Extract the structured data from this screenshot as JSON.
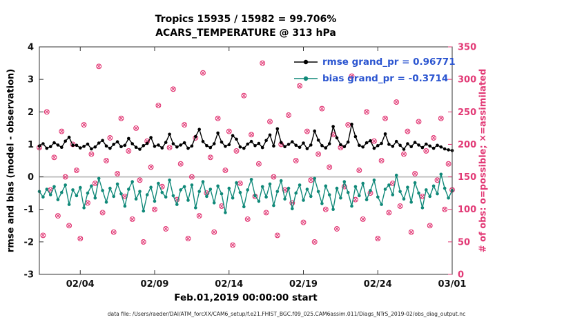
{
  "chart_data": {
    "type": "line",
    "title_line1": "Tropics 15935 / 15982 = 99.706%",
    "title_line2": "ACARS_TEMPERATURE @ 313 hPa",
    "xlabel": "Feb.01,2019 00:00:00 start",
    "ylabel_left": "rmse and bias (model - observation)",
    "ylabel_right": "# of obs: o=possible; ×=assimilated",
    "footer": "data file: /Users/raeder/DAI/ATM_forcXX/CAM6_setup/f.e21.FHIST_BGC.f09_025.CAM6assim.011/Diags_NTrS_2019-02/obs_diag_output.nc",
    "ylim_left": [
      -3,
      4
    ],
    "ylim_right": [
      0,
      350
    ],
    "xlim_days": [
      0.25,
      28
    ],
    "yticks_left": [
      -3,
      -2,
      -1,
      0,
      1,
      2,
      3,
      4
    ],
    "yticks_right": [
      0,
      50,
      100,
      150,
      200,
      250,
      300,
      350
    ],
    "xticks": [
      {
        "label": "02/04",
        "day": 3
      },
      {
        "label": "02/09",
        "day": 8
      },
      {
        "label": "02/14",
        "day": 13
      },
      {
        "label": "02/19",
        "day": 18
      },
      {
        "label": "02/24",
        "day": 23
      },
      {
        "label": "03/01",
        "day": 28
      }
    ],
    "zero_line": 0,
    "zero_line_color": "#bdbdbd",
    "axis_color": "#333333",
    "legend_text_color": "#2b55d0",
    "legend": [
      {
        "label": "rmse grand_pr = 0.96771",
        "color": "#000000"
      },
      {
        "label": "bias grand_pr = -0.3714",
        "color": "#108979"
      }
    ],
    "points": {
      "x_start_day": 0.25,
      "x_step_days": 0.25,
      "count": 112
    },
    "series": [
      {
        "name": "rmse",
        "color": "#000000",
        "values": [
          0.95,
          1.02,
          0.88,
          0.93,
          1.05,
          0.98,
          0.91,
          1.1,
          1.22,
          0.97,
          0.97,
          0.89,
          0.94,
          1.01,
          0.86,
          0.92,
          1.04,
          1.12,
          0.95,
          0.88,
          1.0,
          1.08,
          0.93,
          0.97,
          1.18,
          1.02,
          0.91,
          0.85,
          0.96,
          1.03,
          1.21,
          0.94,
          0.98,
          0.89,
          1.06,
          1.31,
          1.02,
          0.92,
          0.98,
          1.05,
          0.88,
          0.95,
          1.24,
          1.46,
          1.09,
          0.96,
          0.9,
          1.02,
          1.35,
          1.07,
          0.94,
          0.99,
          1.27,
          1.16,
          0.92,
          0.88,
          1.01,
          1.09,
          0.96,
          1.03,
          0.9,
          1.12,
          1.29,
          0.95,
          1.48,
          1.06,
          0.93,
          1.0,
          1.08,
          0.97,
          0.91,
          1.04,
          0.87,
          0.98,
          1.41,
          1.13,
          0.96,
          0.89,
          1.02,
          1.55,
          1.2,
          0.99,
          0.93,
          1.07,
          1.62,
          1.24,
          0.97,
          0.92,
          1.05,
          1.11,
          0.88,
          0.96,
          1.03,
          1.32,
          1.0,
          0.94,
          1.09,
          0.97,
          0.85,
          1.02,
          0.93,
          1.06,
          0.98,
          0.9,
          1.01,
          0.95,
          0.88,
          0.97,
          0.92,
          0.86,
          0.83,
          0.81
        ]
      },
      {
        "name": "bias",
        "color": "#108979",
        "values": [
          -0.45,
          -0.62,
          -0.38,
          -0.55,
          -0.3,
          -0.7,
          -0.48,
          -0.25,
          -0.85,
          -0.4,
          -0.58,
          -0.33,
          -0.95,
          -0.5,
          -0.28,
          -0.65,
          -0.05,
          -0.42,
          -0.78,
          -0.35,
          -0.6,
          -0.22,
          -0.52,
          -0.9,
          -0.38,
          -0.15,
          -0.68,
          -0.45,
          -1.05,
          -0.55,
          -0.32,
          -0.75,
          -0.2,
          -0.48,
          -0.62,
          -0.1,
          -0.58,
          -0.85,
          -0.4,
          -0.3,
          -0.72,
          -0.25,
          -0.95,
          -0.45,
          -0.15,
          -0.6,
          -0.38,
          -0.8,
          -0.28,
          -0.52,
          -1.1,
          -0.35,
          -0.65,
          -0.18,
          -0.48,
          -0.92,
          -0.4,
          -0.08,
          -0.58,
          -0.75,
          -0.3,
          -0.62,
          -0.22,
          -0.88,
          -0.45,
          -0.12,
          -0.68,
          -0.35,
          -0.98,
          -0.5,
          -0.25,
          -0.72,
          -0.38,
          -0.6,
          -0.05,
          -0.45,
          -0.82,
          -0.28,
          -0.55,
          -1.0,
          -0.35,
          -0.65,
          -0.15,
          -0.48,
          -0.9,
          -0.3,
          -0.58,
          -0.2,
          -0.7,
          -0.42,
          -0.1,
          -0.62,
          -0.85,
          -0.38,
          -0.25,
          -0.55,
          0.05,
          -0.45,
          -0.68,
          -0.32,
          -0.78,
          -0.18,
          -0.5,
          -0.95,
          -0.4,
          -0.6,
          -0.28,
          -0.52,
          0.08,
          -0.35,
          -0.65,
          -0.42
        ]
      }
    ],
    "obs": {
      "color": "#e23a76",
      "possible_marker": "o",
      "assimilated_marker": "×",
      "assimilated_same_as_possible": true,
      "possible": [
        195,
        60,
        250,
        130,
        180,
        90,
        220,
        150,
        75,
        200,
        160,
        55,
        230,
        110,
        185,
        140,
        320,
        95,
        175,
        210,
        65,
        155,
        240,
        120,
        190,
        85,
        225,
        145,
        50,
        205,
        165,
        100,
        260,
        135,
        70,
        195,
        285,
        115,
        170,
        230,
        55,
        150,
        210,
        90,
        310,
        125,
        180,
        65,
        240,
        105,
        160,
        220,
        45,
        190,
        140,
        275,
        85,
        215,
        120,
        170,
        325,
        95,
        235,
        150,
        60,
        200,
        130,
        245,
        110,
        175,
        290,
        80,
        220,
        145,
        50,
        185,
        255,
        100,
        165,
        215,
        70,
        195,
        135,
        230,
        305,
        115,
        160,
        85,
        250,
        125,
        205,
        55,
        175,
        240,
        95,
        140,
        265,
        105,
        185,
        220,
        65,
        155,
        235,
        120,
        190,
        75,
        210,
        145,
        240,
        100,
        170,
        130
      ]
    }
  }
}
